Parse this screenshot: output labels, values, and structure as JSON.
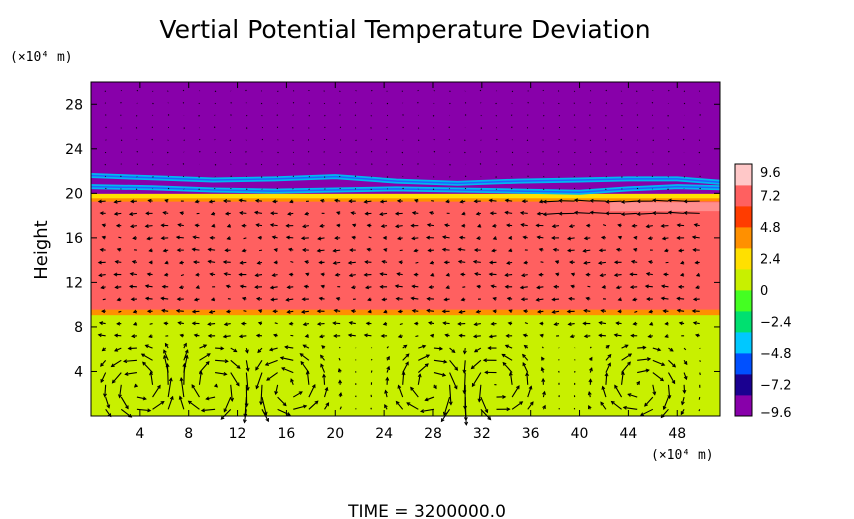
{
  "chart_data": {
    "type": "heatmap",
    "title": "Vertial Potential Temperature Deviation",
    "ylabel": "Height",
    "y_unit": "(×10⁴ m)",
    "x_unit": "(×10⁴ m)",
    "xlim": [
      0,
      51.5
    ],
    "ylim": [
      0,
      30
    ],
    "x_ticks": [
      "4",
      "8",
      "12",
      "16",
      "20",
      "24",
      "28",
      "32",
      "36",
      "40",
      "44",
      "48"
    ],
    "x_tick_values": [
      4,
      8,
      12,
      16,
      20,
      24,
      28,
      32,
      36,
      40,
      44,
      48
    ],
    "y_ticks": [
      "4",
      "8",
      "12",
      "16",
      "20",
      "24",
      "28"
    ],
    "y_tick_values": [
      4,
      8,
      12,
      16,
      20,
      24,
      28
    ],
    "colorbar": {
      "ticks": [
        "9.6",
        "7.2",
        "4.8",
        "2.4",
        "0",
        "−2.4",
        "−4.8",
        "−7.2",
        "−9.6"
      ],
      "values": [
        9.6,
        7.2,
        4.8,
        2.4,
        0,
        -2.4,
        -4.8,
        -7.2,
        -9.6
      ],
      "range": [
        -9.6,
        9.6
      ],
      "colors": [
        "#8800aa",
        "#1a0090",
        "#0050ff",
        "#00c8ff",
        "#00e070",
        "#44ff22",
        "#c8f000",
        "#ffe000",
        "#ff9000",
        "#ff3c00",
        "#ff6060",
        "#ffc8c8"
      ]
    },
    "bands": [
      {
        "y0": 0,
        "y1": 9.1,
        "value": 1.2
      },
      {
        "y0": 9.1,
        "y1": 9.6,
        "value": 4.0
      },
      {
        "y0": 9.6,
        "y1": 12.6,
        "value": 6.9
      },
      {
        "y0": 12.6,
        "y1": 14.6,
        "value": 7.4
      },
      {
        "y0": 14.6,
        "y1": 18.2,
        "value": 7.0
      },
      {
        "y0": 18.2,
        "y1": 19.3,
        "value": 7.6
      },
      {
        "y0": 19.3,
        "y1": 19.6,
        "value": 4.5
      },
      {
        "y0": 19.6,
        "y1": 20.0,
        "value": 2.4
      },
      {
        "y0": 20.0,
        "y1": 30.0,
        "value": -9.6
      }
    ],
    "contour_lines": [
      {
        "color_value": -4.0,
        "y": [
          21.6,
          21.4,
          21.2,
          21.3,
          21.5,
          21.1,
          20.9,
          21.1,
          21.2,
          21.3,
          21.3,
          21.0
        ],
        "x": [
          0,
          5,
          10,
          15,
          20,
          25,
          30,
          35,
          40,
          44,
          48,
          51.5
        ]
      },
      {
        "color_value": -5.5,
        "y": [
          20.6,
          20.5,
          20.3,
          20.2,
          20.3,
          20.4,
          20.3,
          20.2,
          20.1,
          20.4,
          20.6,
          20.5
        ],
        "x": [
          0,
          5,
          10,
          15,
          20,
          25,
          30,
          35,
          40,
          44,
          48,
          51.5
        ]
      }
    ],
    "vector_field": "wind arrows on a regular grid; strong rotating cells below 6 km near x = 4, 10, 28, 45",
    "footer": "TIME  =  3200000.0"
  }
}
